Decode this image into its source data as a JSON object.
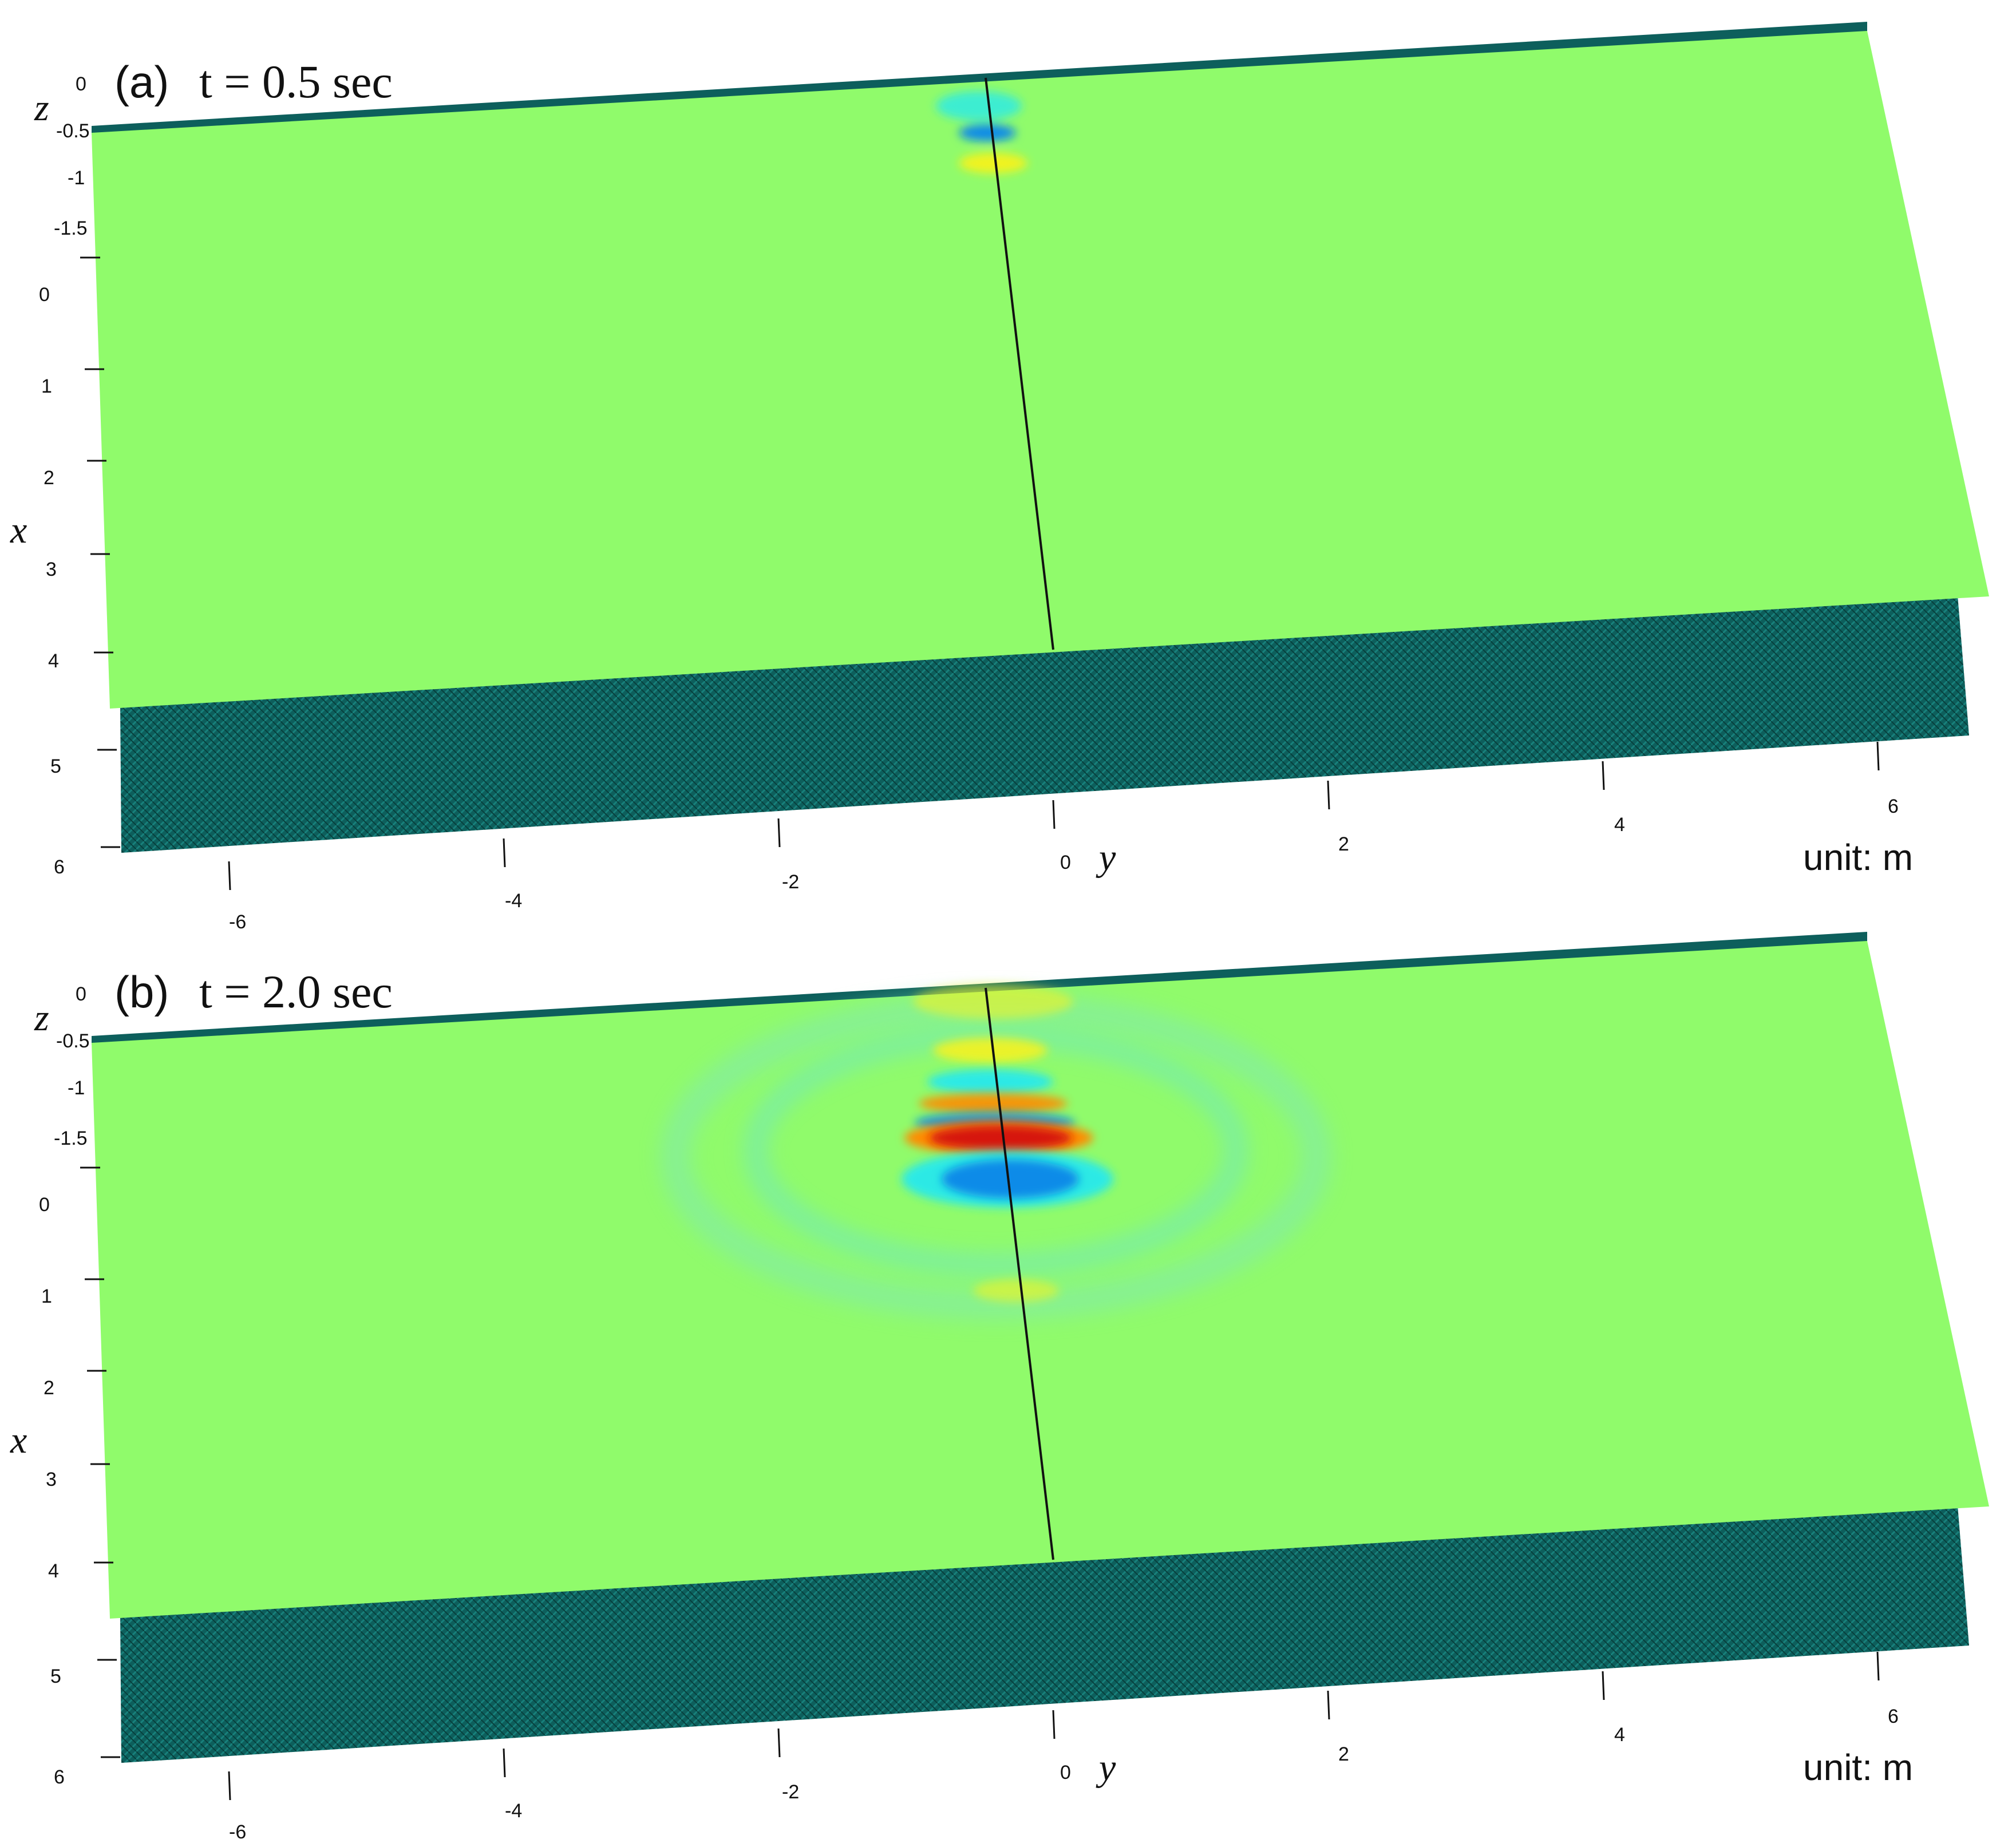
{
  "colors": {
    "surface": "#90fb6b",
    "plate": "#0d5f5c",
    "plate_dark": "#0a4a47",
    "background": "#ffffff",
    "red": "#d6190f",
    "orange": "#ff8b00",
    "yellow": "#fbf21a",
    "cyan": "#20e8f3",
    "blue": "#0b8be8",
    "centerline": "#111111"
  },
  "units_label": "unit: m",
  "axes": {
    "x_label": "x",
    "y_label": "y",
    "z_label": "z",
    "x_ticks": [
      "0",
      "1",
      "2",
      "3",
      "4",
      "5",
      "6"
    ],
    "y_ticks": [
      "-6",
      "-4",
      "-2",
      "0",
      "2",
      "4",
      "6"
    ],
    "z_ticks": [
      "0",
      "-0.5",
      "-1",
      "-1.5"
    ]
  },
  "panels": [
    {
      "tag": "(a)",
      "time_text": "t = 0.5 sec",
      "pattern": "early"
    },
    {
      "tag": "(b)",
      "time_text": "t = 2.0 sec",
      "pattern": "late"
    }
  ]
}
